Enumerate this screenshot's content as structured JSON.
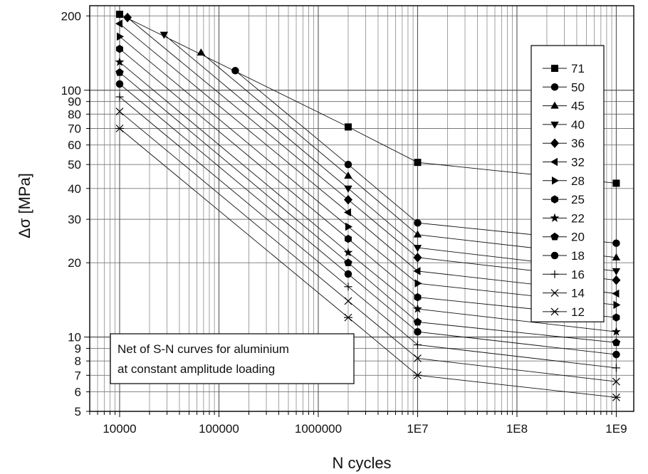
{
  "chart_data": {
    "type": "line",
    "xlabel": "N cycles",
    "ylabel": "Δσ [MPa]",
    "x_scale": "log",
    "y_scale": "log",
    "xlim": [
      5000,
      1500000000
    ],
    "ylim": [
      5,
      220
    ],
    "grid": true,
    "legend_placement": "right",
    "x_tick_labels": [
      {
        "value": 10000,
        "label": "10000"
      },
      {
        "value": 100000,
        "label": "100000"
      },
      {
        "value": 1000000,
        "label": "1000000"
      },
      {
        "value": 10000000,
        "label": "1E7"
      },
      {
        "value": 100000000,
        "label": "1E8"
      },
      {
        "value": 1000000000,
        "label": "1E9"
      }
    ],
    "y_tick_labels": [
      {
        "value": 5,
        "label": "5"
      },
      {
        "value": 6,
        "label": "6"
      },
      {
        "value": 7,
        "label": "7"
      },
      {
        "value": 8,
        "label": "8"
      },
      {
        "value": 9,
        "label": "9"
      },
      {
        "value": 10,
        "label": "10"
      },
      {
        "value": 20,
        "label": "20"
      },
      {
        "value": 30,
        "label": "30"
      },
      {
        "value": 40,
        "label": "40"
      },
      {
        "value": 50,
        "label": "50"
      },
      {
        "value": 60,
        "label": "60"
      },
      {
        "value": 70,
        "label": "70"
      },
      {
        "value": 80,
        "label": "80"
      },
      {
        "value": 90,
        "label": "90"
      },
      {
        "value": 100,
        "label": "100"
      },
      {
        "value": 200,
        "label": "200"
      }
    ],
    "annotation": [
      "Net of S-N curves for aluminium",
      "at constant amplitude loading"
    ],
    "series": [
      {
        "name": "71",
        "marker": "square",
        "points": [
          [
            10000,
            203
          ],
          [
            2000000,
            71
          ],
          [
            10000000,
            51
          ],
          [
            1000000000,
            42
          ]
        ]
      },
      {
        "name": "50",
        "marker": "circle",
        "points": [
          [
            146000,
            120
          ],
          [
            2000000,
            50
          ],
          [
            10000000,
            29
          ],
          [
            1000000000,
            24
          ]
        ]
      },
      {
        "name": "45",
        "marker": "triangle-up",
        "points": [
          [
            66000,
            142
          ],
          [
            2000000,
            45
          ],
          [
            10000000,
            26
          ],
          [
            1000000000,
            21
          ]
        ]
      },
      {
        "name": "40",
        "marker": "triangle-down",
        "points": [
          [
            28000,
            168
          ],
          [
            2000000,
            40
          ],
          [
            10000000,
            23
          ],
          [
            1000000000,
            18.5
          ]
        ]
      },
      {
        "name": "36",
        "marker": "diamond",
        "points": [
          [
            12000,
            197
          ],
          [
            2000000,
            36
          ],
          [
            10000000,
            21
          ],
          [
            1000000000,
            17
          ]
        ]
      },
      {
        "name": "32",
        "marker": "triangle-left",
        "points": [
          [
            10000,
            186
          ],
          [
            2000000,
            32
          ],
          [
            10000000,
            18.5
          ],
          [
            1000000000,
            15
          ]
        ]
      },
      {
        "name": "28",
        "marker": "triangle-right",
        "points": [
          [
            10000,
            165
          ],
          [
            2000000,
            28
          ],
          [
            10000000,
            16.5
          ],
          [
            1000000000,
            13.5
          ]
        ]
      },
      {
        "name": "25",
        "marker": "hexagon",
        "points": [
          [
            10000,
            147
          ],
          [
            2000000,
            25
          ],
          [
            10000000,
            14.5
          ],
          [
            1000000000,
            12
          ]
        ]
      },
      {
        "name": "22",
        "marker": "star",
        "points": [
          [
            10000,
            130
          ],
          [
            2000000,
            22
          ],
          [
            10000000,
            13
          ],
          [
            1000000000,
            10.5
          ]
        ]
      },
      {
        "name": "20",
        "marker": "pentagon",
        "points": [
          [
            10000,
            118
          ],
          [
            2000000,
            20
          ],
          [
            10000000,
            11.5
          ],
          [
            1000000000,
            9.5
          ]
        ]
      },
      {
        "name": "18",
        "marker": "circle",
        "points": [
          [
            10000,
            106
          ],
          [
            2000000,
            18
          ],
          [
            10000000,
            10.5
          ],
          [
            1000000000,
            8.5
          ]
        ]
      },
      {
        "name": "16",
        "marker": "plus",
        "points": [
          [
            10000,
            94
          ],
          [
            2000000,
            16
          ],
          [
            10000000,
            9.3
          ],
          [
            1000000000,
            7.5
          ]
        ]
      },
      {
        "name": "14",
        "marker": "x",
        "points": [
          [
            10000,
            82
          ],
          [
            2000000,
            14
          ],
          [
            10000000,
            8.2
          ],
          [
            1000000000,
            6.6
          ]
        ]
      },
      {
        "name": "12",
        "marker": "asterisk",
        "points": [
          [
            10000,
            70
          ],
          [
            2000000,
            12
          ],
          [
            10000000,
            7
          ],
          [
            1000000000,
            5.7
          ]
        ]
      }
    ]
  }
}
